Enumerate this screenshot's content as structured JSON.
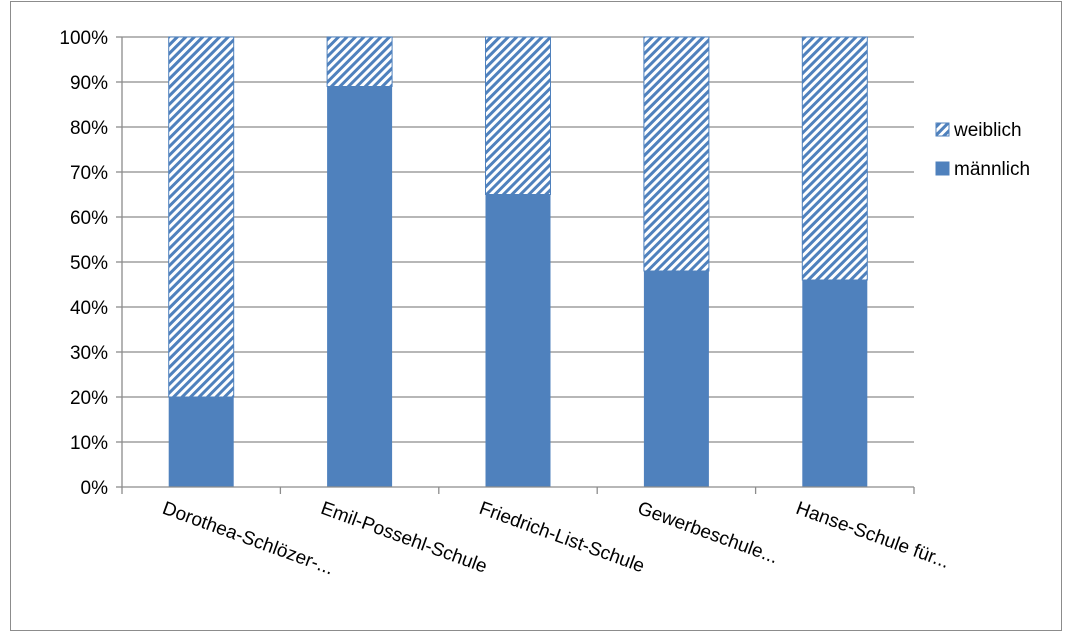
{
  "chart_data": {
    "type": "bar",
    "stacked": true,
    "percent_stacked": true,
    "categories": [
      "Dorothea-Schlözer-...",
      "Emil-Possehl-Schule",
      "Friedrich-List-Schule",
      "Gewerbeschule...",
      "Hanse-Schule für..."
    ],
    "series": [
      {
        "name": "männlich",
        "values": [
          20,
          89,
          65,
          48,
          46
        ],
        "color": "#4f81bd",
        "pattern": "solid"
      },
      {
        "name": "weiblich",
        "values": [
          80,
          11,
          35,
          52,
          54
        ],
        "color": "#4f81bd",
        "pattern": "diagonal-hatch"
      }
    ],
    "y_ticks": [
      "0%",
      "10%",
      "20%",
      "30%",
      "40%",
      "50%",
      "60%",
      "70%",
      "80%",
      "90%",
      "100%"
    ],
    "ylim": [
      0,
      100
    ],
    "grid": true,
    "legend_position": "right",
    "legend": [
      {
        "label": "weiblich",
        "series": "weiblich"
      },
      {
        "label": "männlich",
        "series": "männlich"
      }
    ],
    "title": "",
    "xlabel": "",
    "ylabel": ""
  }
}
